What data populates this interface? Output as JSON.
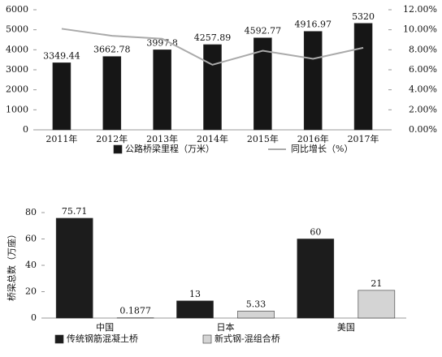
{
  "chart_data": [
    {
      "type": "bar",
      "categories": [
        "2011年",
        "2012年",
        "2013年",
        "2014年",
        "2015年",
        "2016年",
        "2017年"
      ],
      "series": [
        {
          "name": "公路桥梁里程（万米）",
          "color": "#161616",
          "values": [
            3349.44,
            3662.78,
            3997.8,
            4257.89,
            4592.77,
            4916.97,
            5320
          ]
        },
        {
          "name": "同比增长（%）",
          "type": "line",
          "axis": "y2",
          "color": "#aaaaaa",
          "values": [
            10.1,
            9.4,
            9.1,
            6.5,
            7.9,
            7.1,
            8.2
          ]
        }
      ],
      "ylim": [
        0,
        6000
      ],
      "yticks": [
        0,
        1000,
        2000,
        3000,
        4000,
        5000,
        6000
      ],
      "y2lim": [
        0,
        12
      ],
      "y2ticks": [
        {
          "value": 0,
          "label": "0.00%"
        },
        {
          "value": 2,
          "label": "2.00%"
        },
        {
          "value": 4,
          "label": "4.00%"
        },
        {
          "value": 6,
          "label": "6.00%"
        },
        {
          "value": 8,
          "label": "8.00%"
        },
        {
          "value": 10,
          "label": "10.00%"
        },
        {
          "value": 12,
          "label": "12.00%"
        }
      ]
    },
    {
      "type": "bar",
      "y_label": "桥梁总数（万座）",
      "categories": [
        "中国",
        "日本",
        "美国"
      ],
      "series": [
        {
          "name": "传统钢筋混凝土桥",
          "color": "#1c1c1c",
          "values": [
            75.71,
            13,
            60
          ]
        },
        {
          "name": "新式钢-混组合桥",
          "color": "#d4d4d4",
          "values": [
            0.1877,
            5.33,
            21
          ]
        }
      ],
      "ylim": [
        0,
        80
      ],
      "yticks": [
        0,
        20,
        40,
        60,
        80
      ]
    }
  ]
}
